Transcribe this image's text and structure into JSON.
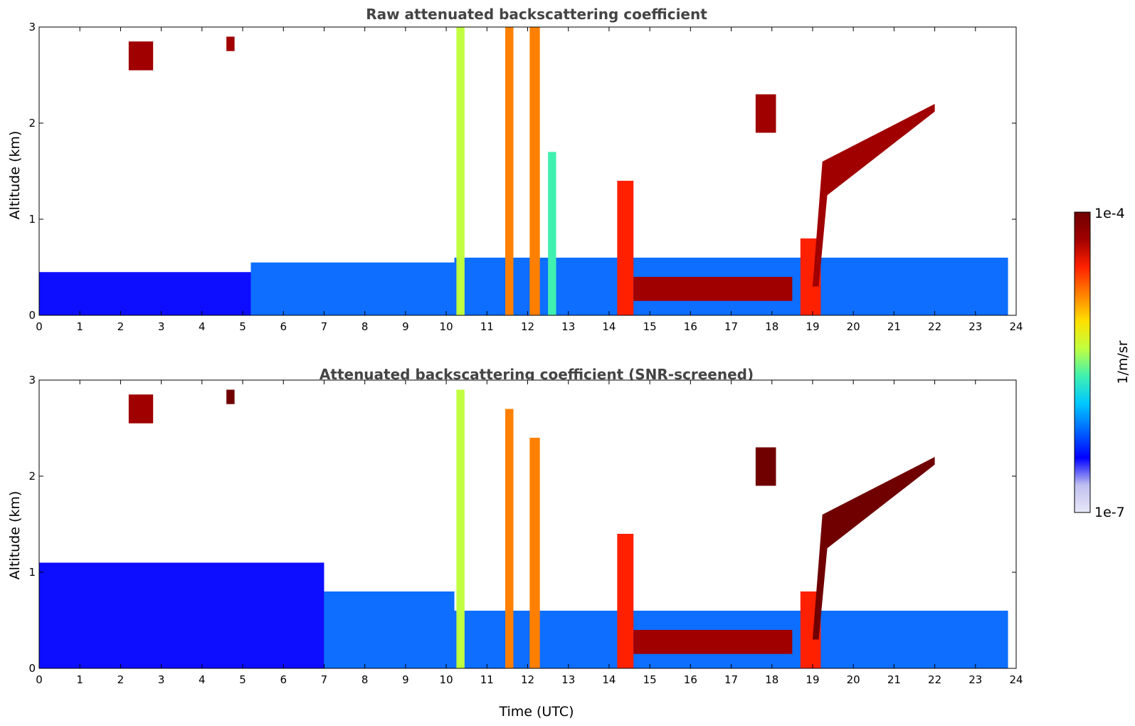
{
  "chart_data": [
    {
      "type": "heatmap",
      "title": "Raw attenuated backscattering coefficient",
      "xlabel": "",
      "ylabel": "Altitude (km)",
      "xlim": [
        0,
        24
      ],
      "ylim": [
        0,
        3
      ],
      "xticks": [
        "0",
        "1",
        "2",
        "3",
        "4",
        "5",
        "6",
        "7",
        "8",
        "9",
        "10",
        "11",
        "12",
        "13",
        "14",
        "15",
        "16",
        "17",
        "18",
        "19",
        "20",
        "21",
        "22",
        "23",
        "24"
      ],
      "yticks": [
        "0",
        "1",
        "2",
        "3"
      ],
      "screened": false,
      "features": [
        {
          "kind": "boundary_layer",
          "x": [
            0,
            5.2
          ],
          "y": [
            0,
            0.45
          ],
          "level": 0.2
        },
        {
          "kind": "boundary_layer",
          "x": [
            5.2,
            10.2
          ],
          "y": [
            0,
            0.55
          ],
          "level": 0.28
        },
        {
          "kind": "boundary_layer",
          "x": [
            10.2,
            23.8
          ],
          "y": [
            0,
            0.6
          ],
          "level": 0.25
        },
        {
          "kind": "column",
          "x": [
            10.25,
            10.45
          ],
          "y": [
            0,
            3
          ],
          "level": 0.55
        },
        {
          "kind": "column",
          "x": [
            11.45,
            11.65
          ],
          "y": [
            0,
            3
          ],
          "level": 0.72
        },
        {
          "kind": "column",
          "x": [
            12.05,
            12.3
          ],
          "y": [
            0,
            3
          ],
          "level": 0.75
        },
        {
          "kind": "column",
          "x": [
            12.5,
            12.7
          ],
          "y": [
            0,
            1.7
          ],
          "level": 0.45
        },
        {
          "kind": "column",
          "x": [
            14.2,
            14.6
          ],
          "y": [
            0,
            1.4
          ],
          "level": 0.85
        },
        {
          "kind": "column",
          "x": [
            18.7,
            19.2
          ],
          "y": [
            0,
            0.8
          ],
          "level": 0.85
        },
        {
          "kind": "layer",
          "x": [
            14.6,
            18.5
          ],
          "y": [
            0.15,
            0.4
          ],
          "level": 0.9
        },
        {
          "kind": "cloud_slope",
          "x": [
            19.0,
            22.0
          ],
          "y": [
            1.6,
            2.2
          ],
          "level": 0.95
        },
        {
          "kind": "patch",
          "x": [
            17.6,
            18.1
          ],
          "y": [
            1.9,
            2.3
          ],
          "level": 0.95
        },
        {
          "kind": "patch",
          "x": [
            2.2,
            2.8
          ],
          "y": [
            2.55,
            2.85
          ],
          "level": 0.95
        },
        {
          "kind": "patch",
          "x": [
            4.6,
            4.8
          ],
          "y": [
            2.75,
            2.9
          ],
          "level": 0.9
        }
      ]
    },
    {
      "type": "heatmap",
      "title": "Attenuated backscattering coefficient (SNR-screened)",
      "xlabel": "Time (UTC)",
      "ylabel": "Altitude (km)",
      "xlim": [
        0,
        24
      ],
      "ylim": [
        0,
        3
      ],
      "xticks": [
        "0",
        "1",
        "2",
        "3",
        "4",
        "5",
        "6",
        "7",
        "8",
        "9",
        "10",
        "11",
        "12",
        "13",
        "14",
        "15",
        "16",
        "17",
        "18",
        "19",
        "20",
        "21",
        "22",
        "23",
        "24"
      ],
      "yticks": [
        "0",
        "1",
        "2",
        "3"
      ],
      "screened": true,
      "features": [
        {
          "kind": "boundary_layer",
          "x": [
            0,
            7
          ],
          "y": [
            0,
            1.1
          ],
          "level": 0.18
        },
        {
          "kind": "boundary_layer",
          "x": [
            7,
            10.2
          ],
          "y": [
            0,
            0.8
          ],
          "level": 0.28
        },
        {
          "kind": "boundary_layer",
          "x": [
            10.2,
            23.8
          ],
          "y": [
            0,
            0.6
          ],
          "level": 0.25
        },
        {
          "kind": "column",
          "x": [
            10.25,
            10.45
          ],
          "y": [
            0,
            2.9
          ],
          "level": 0.55
        },
        {
          "kind": "column",
          "x": [
            11.45,
            11.65
          ],
          "y": [
            0,
            2.7
          ],
          "level": 0.72
        },
        {
          "kind": "column",
          "x": [
            12.05,
            12.3
          ],
          "y": [
            0,
            2.4
          ],
          "level": 0.75
        },
        {
          "kind": "column",
          "x": [
            14.2,
            14.6
          ],
          "y": [
            0,
            1.4
          ],
          "level": 0.85
        },
        {
          "kind": "column",
          "x": [
            18.7,
            19.2
          ],
          "y": [
            0,
            0.8
          ],
          "level": 0.85
        },
        {
          "kind": "layer",
          "x": [
            14.6,
            18.5
          ],
          "y": [
            0.15,
            0.4
          ],
          "level": 0.95
        },
        {
          "kind": "cloud_slope",
          "x": [
            19.0,
            22.0
          ],
          "y": [
            1.6,
            2.2
          ],
          "level": 1.0
        },
        {
          "kind": "patch",
          "x": [
            17.6,
            18.1
          ],
          "y": [
            1.9,
            2.3
          ],
          "level": 1.0
        },
        {
          "kind": "patch",
          "x": [
            2.2,
            2.8
          ],
          "y": [
            2.55,
            2.85
          ],
          "level": 0.95
        },
        {
          "kind": "patch",
          "x": [
            4.6,
            4.8
          ],
          "y": [
            2.75,
            2.9
          ],
          "level": 1.0
        }
      ]
    }
  ],
  "colorbar": {
    "label": "1/m/sr",
    "max_label": "1e-4",
    "min_label": "1e-7",
    "range": [
      "1e-7",
      "1e-4"
    ],
    "colors": [
      "#e8e8f8",
      "#c0c0f0",
      "#0000ff",
      "#0066ff",
      "#00c8ff",
      "#40f0b0",
      "#c0ff40",
      "#ffe000",
      "#ff8000",
      "#ff2000",
      "#a00000",
      "#700000"
    ]
  }
}
